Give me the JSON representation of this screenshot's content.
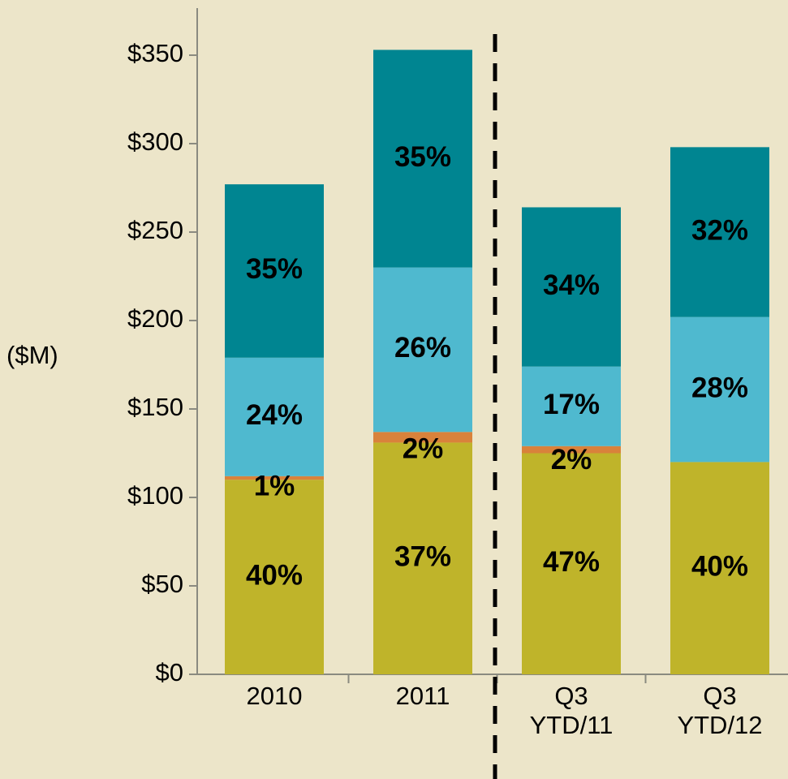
{
  "chart_data": {
    "type": "stacked_bar",
    "y_label": "($M)",
    "categories": [
      "2010",
      "2011",
      "Q3 YTD/11",
      "Q3 YTD/12"
    ],
    "series": [
      {
        "color": "#bfb42a",
        "values": [
          110,
          131,
          125,
          120
        ],
        "value_labels": [
          "40%",
          "37%",
          "47%",
          "40%"
        ]
      },
      {
        "color": "#d9823b",
        "values": [
          2,
          6,
          4,
          0
        ],
        "value_labels": [
          "1%",
          "2%",
          "2%",
          null
        ]
      },
      {
        "color": "#4fb9cf",
        "values": [
          67,
          93,
          45,
          82
        ],
        "value_labels": [
          "24%",
          "26%",
          "17%",
          "28%"
        ]
      },
      {
        "color": "#008591",
        "values": [
          98,
          123,
          90,
          96
        ],
        "value_labels": [
          "35%",
          "35%",
          "34%",
          "32%"
        ]
      }
    ],
    "ylim": [
      0,
      350
    ],
    "yticks": [
      {
        "value": 0,
        "label": "$0"
      },
      {
        "value": 50,
        "label": "$50"
      },
      {
        "value": 100,
        "label": "$100"
      },
      {
        "value": 150,
        "label": "$150"
      },
      {
        "value": 200,
        "label": "$200"
      },
      {
        "value": 250,
        "label": "$250"
      },
      {
        "value": 300,
        "label": "$300"
      },
      {
        "value": 350,
        "label": "$350"
      }
    ]
  }
}
